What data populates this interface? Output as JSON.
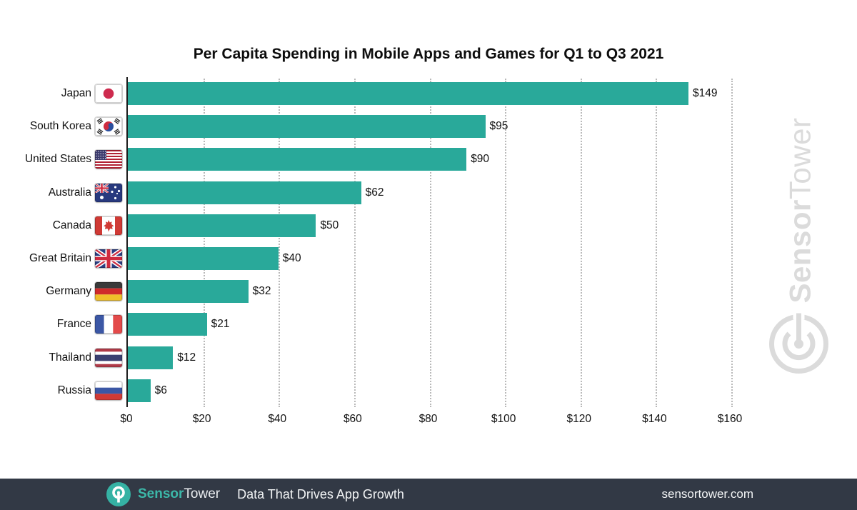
{
  "title": "Per Capita Spending in Mobile Apps and Games for Q1 to Q3 2021",
  "chart_data": {
    "type": "bar",
    "orientation": "horizontal",
    "title": "Per Capita Spending in Mobile Apps and Games for Q1 to Q3 2021",
    "categories": [
      "Japan",
      "South Korea",
      "United States",
      "Australia",
      "Canada",
      "Great Britain",
      "Germany",
      "France",
      "Thailand",
      "Russia"
    ],
    "values": [
      149,
      95,
      90,
      62,
      50,
      40,
      32,
      21,
      12,
      6
    ],
    "value_labels": [
      "$149",
      "$95",
      "$90",
      "$62",
      "$50",
      "$40",
      "$32",
      "$21",
      "$12",
      "$6"
    ],
    "flags": [
      "jp",
      "kr",
      "us",
      "au",
      "ca",
      "gb",
      "de",
      "fr",
      "th",
      "ru"
    ],
    "x_ticks": [
      "$0",
      "$20",
      "$40",
      "$60",
      "$80",
      "$100",
      "$120",
      "$140",
      "$160"
    ],
    "xlim": [
      0,
      160
    ],
    "xlabel": "",
    "ylabel": "",
    "bar_color": "#29a99a",
    "grid": "dotted-vertical",
    "legend": "none"
  },
  "watermark": {
    "sensor": "Sensor",
    "tower": "Tower"
  },
  "footer": {
    "brand_sensor": "Sensor",
    "brand_tower": "Tower",
    "tagline": "Data That Drives App Growth",
    "website": "sensortower.com"
  }
}
